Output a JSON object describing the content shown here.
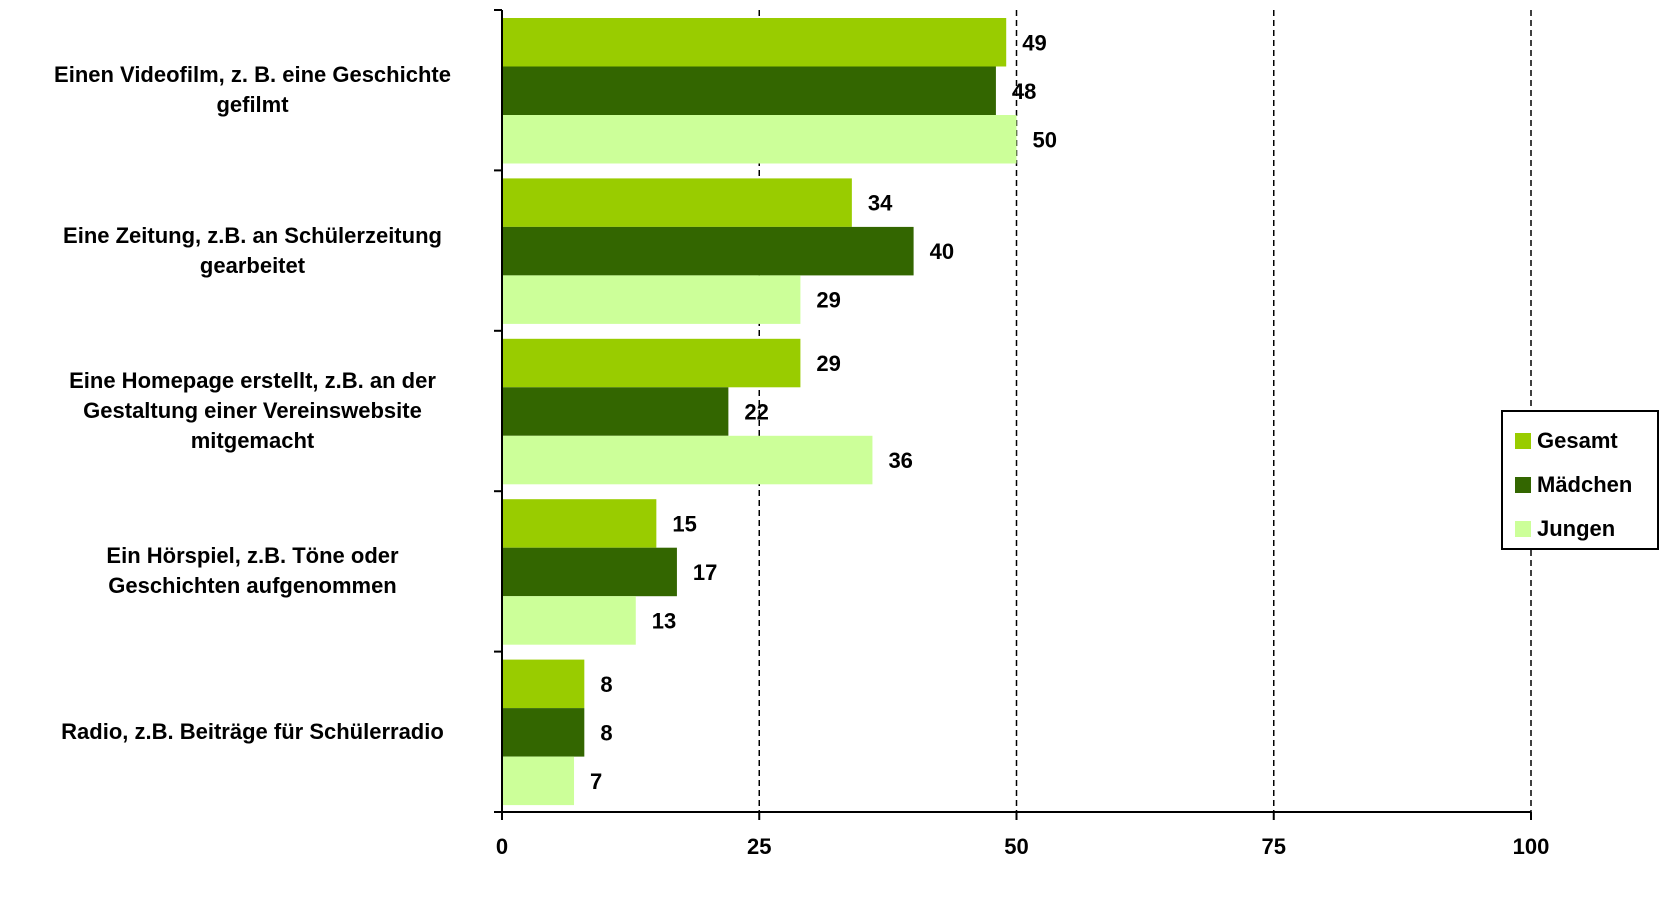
{
  "chart_data": {
    "type": "bar",
    "orientation": "horizontal",
    "categories": [
      "Einen Videofilm, z. B. eine Geschichte\ngefilmt",
      "Eine Zeitung, z.B. an Schülerzeitung\ngearbeitet",
      "Eine Homepage erstellt, z.B. an der\nGestaltung einer Vereinswebsite\nmitgemacht",
      "Ein Hörspiel, z.B. Töne oder\nGeschichten aufgenommen",
      "Radio, z.B. Beiträge für Schülerradio"
    ],
    "series": [
      {
        "name": "Gesamt",
        "color": "#99cc00",
        "values": [
          49,
          34,
          29,
          15,
          8
        ]
      },
      {
        "name": "Mädchen",
        "color": "#336600",
        "values": [
          48,
          40,
          22,
          17,
          8
        ]
      },
      {
        "name": "Jungen",
        "color": "#ccff99",
        "values": [
          50,
          29,
          36,
          13,
          7
        ]
      }
    ],
    "xlim": [
      0,
      100
    ],
    "xticks": [
      0,
      25,
      50,
      75,
      100
    ],
    "grid": "vertical dashed",
    "legend_position": "right",
    "title": "",
    "xlabel": "",
    "ylabel": ""
  }
}
